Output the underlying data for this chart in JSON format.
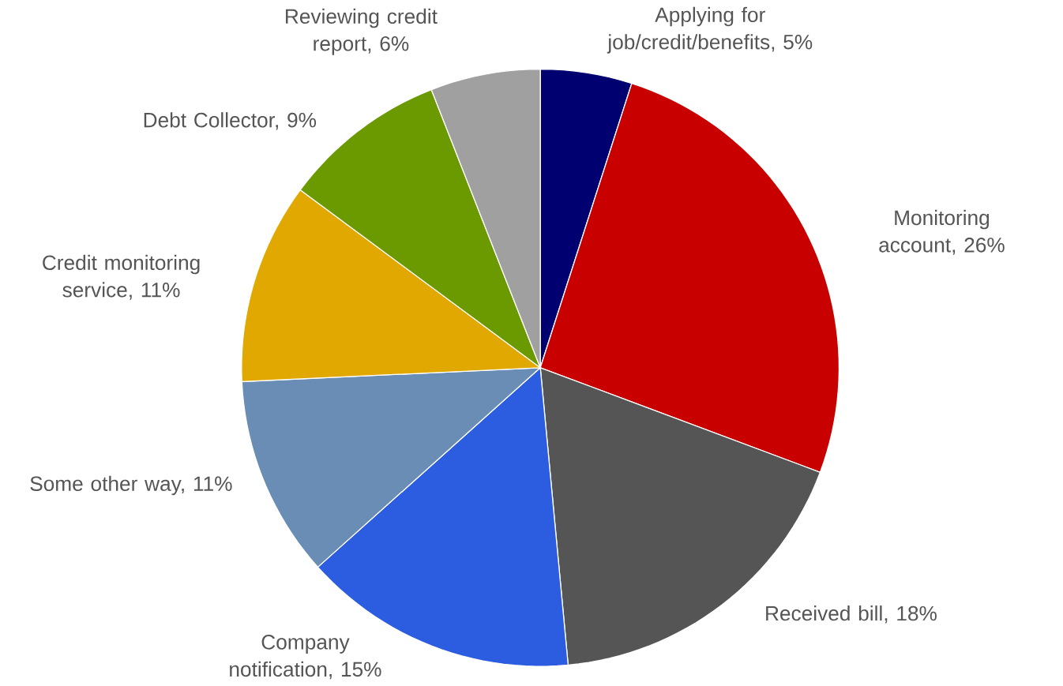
{
  "chart_data": {
    "type": "pie",
    "categories": [
      "Applying for job/credit/benefits, 5%",
      "Monitoring account, 26%",
      "Received bill, 18%",
      "Company notification, 15%",
      "Some other way, 11%",
      "Credit monitoring service, 11%",
      "Debt Collector, 9%",
      "Reviewing credit report, 6%"
    ],
    "values": [
      5,
      26,
      18,
      15,
      11,
      11,
      9,
      6
    ],
    "colors": [
      "#000070",
      "#c80000",
      "#555555",
      "#2c5ce0",
      "#6a8db5",
      "#e0a800",
      "#6a9a00",
      "#a0a0a0"
    ]
  }
}
